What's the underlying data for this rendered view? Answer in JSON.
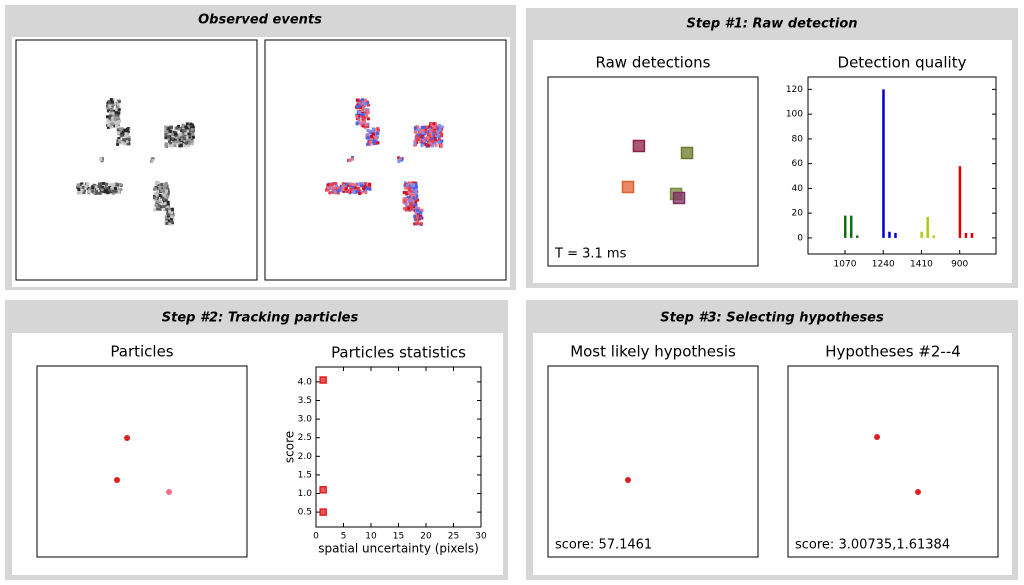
{
  "panels": [
    {
      "title": "Observed events"
    },
    {
      "title": "Step #1: Raw detection"
    },
    {
      "title": "Step #2: Tracking particles"
    },
    {
      "title": "Step #3: Selecting hypotheses"
    }
  ],
  "chart_data": [
    {
      "type": "scatter",
      "title": "Raw detections",
      "marker": "square",
      "annotation": "T = 3.1 ms",
      "x": [
        43.3,
        66.2,
        38.1,
        61.0,
        62.4
      ],
      "y": [
        63.5,
        59.8,
        41.8,
        38.1,
        36.0
      ],
      "colors": [
        "#8b2040",
        "#6b7a2a",
        "#e06030",
        "#7a8a40",
        "#803060"
      ],
      "xlim": [
        0,
        100
      ],
      "ylim": [
        0,
        100
      ]
    },
    {
      "type": "groupbar",
      "title": "Detection quality",
      "categories": [
        "1070",
        "1240",
        "1410",
        "900"
      ],
      "values": [
        [
          18,
          18,
          2
        ],
        [
          120,
          5,
          4
        ],
        [
          5,
          17,
          2
        ],
        [
          58,
          4,
          4
        ]
      ],
      "colors": [
        "#107010",
        "#0000cc",
        "#aacc10",
        "#dd0000"
      ],
      "ylim": [
        -13,
        130
      ],
      "yticks": [
        0,
        20,
        40,
        60,
        80,
        100,
        120
      ]
    },
    {
      "type": "scatter",
      "title": "Particles",
      "marker": "circle",
      "x": [
        42.9,
        38.1,
        62.9
      ],
      "y": [
        62.3,
        40.3,
        34.0
      ],
      "colors": [
        "#e02020",
        "#e02020",
        "#f07080"
      ],
      "xlim": [
        0,
        100
      ],
      "ylim": [
        0,
        100
      ]
    },
    {
      "type": "scatter",
      "title": "Particles statistics",
      "marker": "square",
      "x": [
        1.3,
        1.3,
        1.3
      ],
      "y": [
        4.05,
        1.1,
        0.5
      ],
      "colors": [
        "#e02020",
        "#e02020",
        "#e02020"
      ],
      "xlabel": "spatial uncertainty (pixels)",
      "ylabel": "score",
      "xlim": [
        0,
        30
      ],
      "ylim": [
        0.1,
        4.4
      ],
      "xticks": [
        0,
        5,
        10,
        15,
        20,
        25,
        30
      ],
      "yticks": [
        0.5,
        {
          "value": 1,
          "label": "1.0"
        },
        1.5,
        {
          "value": 2,
          "label": "2.0"
        },
        2.5,
        {
          "value": 3,
          "label": "3.0"
        },
        3.5,
        {
          "value": 4,
          "label": "4.0"
        }
      ]
    },
    {
      "type": "scatter",
      "title": "Most likely hypothesis",
      "marker": "circle",
      "annotation": "score: 57.1461",
      "x": [
        38.1
      ],
      "y": [
        40.3
      ],
      "colors": [
        "#e02020"
      ],
      "xlim": [
        0,
        100
      ],
      "ylim": [
        0,
        100
      ]
    },
    {
      "type": "scatter",
      "title": "Hypotheses #2--4",
      "marker": "circle",
      "annotation": "score: 3.00735,1.61384",
      "x": [
        42.4,
        61.9
      ],
      "y": [
        62.8,
        34.0
      ],
      "colors": [
        "#e02020",
        "#e02020"
      ],
      "xlim": [
        0,
        100
      ],
      "ylim": [
        0,
        100
      ]
    }
  ]
}
